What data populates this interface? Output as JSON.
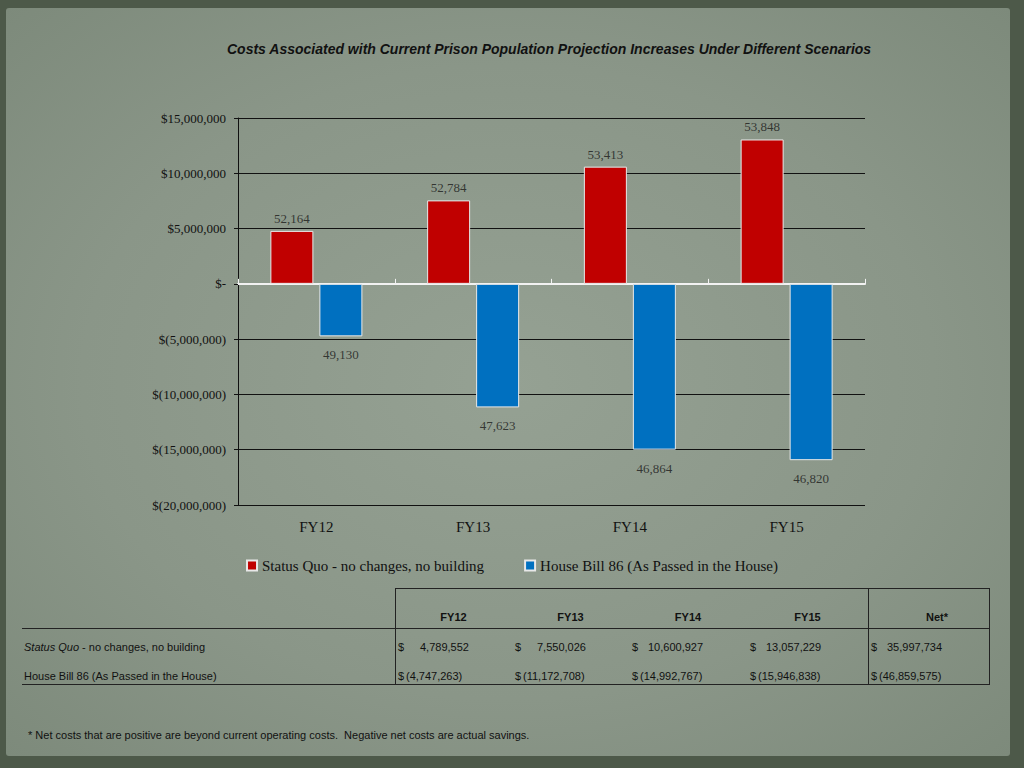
{
  "chart_data": {
    "type": "bar",
    "title": "Costs Associated with Current Prison Population Projection Increases Under Different Scenarios",
    "categories": [
      "FY12",
      "FY13",
      "FY14",
      "FY15"
    ],
    "series": [
      {
        "name": "Status Quo - no changes, no building",
        "color": "#c00000",
        "values": [
          4789552,
          7550026,
          10600927,
          13057229
        ],
        "population": [
          {
            "value": 52164,
            "label": "52,164"
          },
          {
            "value": 52784,
            "label": "52,784"
          },
          {
            "value": 53413,
            "label": "53,413"
          },
          {
            "value": 53848,
            "label": "53,848"
          }
        ]
      },
      {
        "name": "House Bill 86 (As Passed in the House)",
        "color": "#0070c0",
        "values": [
          -4747263,
          -11172708,
          -14992767,
          -15946838
        ],
        "population": [
          {
            "value": 49130,
            "label": "49,130"
          },
          {
            "value": 47623,
            "label": "47,623"
          },
          {
            "value": 46864,
            "label": "46,864"
          },
          {
            "value": 46820,
            "label": "46,820"
          }
        ]
      }
    ],
    "ylim": [
      -20000000,
      15000000
    ],
    "yticks": [
      {
        "value": -20000000,
        "label": "$(20,000,000)"
      },
      {
        "value": -15000000,
        "label": "$(15,000,000)"
      },
      {
        "value": -10000000,
        "label": "$(10,000,000)"
      },
      {
        "value": -5000000,
        "label": "$(5,000,000)"
      },
      {
        "value": 0,
        "label": "$-"
      },
      {
        "value": 5000000,
        "label": "$5,000,000"
      },
      {
        "value": 10000000,
        "label": "$10,000,000"
      },
      {
        "value": 15000000,
        "label": "$15,000,000"
      }
    ],
    "grid": true,
    "legend": "bottom"
  },
  "table": {
    "columns": [
      "FY12",
      "FY13",
      "FY14",
      "FY15",
      "Net*"
    ],
    "rows": [
      {
        "label": {
          "italic": "Status Quo",
          "text": " - no changes, no building"
        },
        "cells": [
          "$ 4,789,552",
          "$ 7,550,026",
          "$ 10,600,927",
          "$ 13,057,229",
          "$ 35,997,734"
        ]
      },
      {
        "label": {
          "text": "House Bill 86 (As Passed in the House)"
        },
        "cells": [
          "$ (4,747,263)",
          "$ (11,172,708)",
          "$ (14,992,767)",
          "$ (15,946,838)",
          "$ (46,859,575)"
        ]
      }
    ]
  },
  "footnote": "* Net costs that are positive are beyond current operating costs.  Negative net costs are actual savings."
}
